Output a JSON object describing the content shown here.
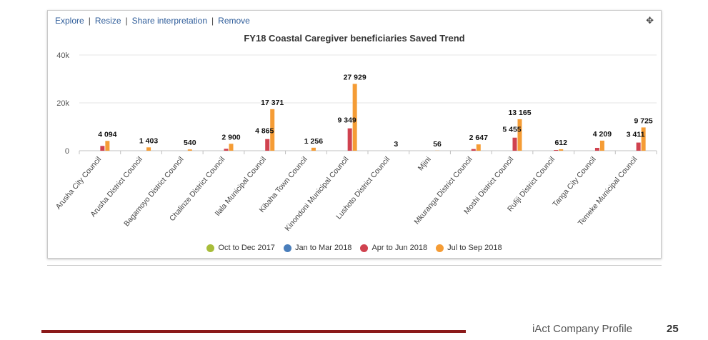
{
  "toolbar": {
    "links": [
      "Explore",
      "Resize",
      "Share interpretation",
      "Remove"
    ],
    "move_icon": "move-icon"
  },
  "footer": {
    "title": "iAct Company Profile",
    "page_number": "25",
    "accent_color": "#8b1a1a"
  },
  "chart_data": {
    "type": "bar",
    "title": "FY18 Coastal Caregiver beneficiaries Saved Trend",
    "xlabel": "",
    "ylabel": "",
    "ylim": [
      0,
      40000
    ],
    "y_ticks": [
      "0",
      "20k",
      "40k"
    ],
    "y_tick_values": [
      0,
      20000,
      40000
    ],
    "grid": true,
    "legend_position": "bottom",
    "categories": [
      "Arusha City Council",
      "Arusha District Council",
      "Bagamoyo District Council",
      "Chalinze District Council",
      "Ilala Municipal Council",
      "Kibaha Town Council",
      "Kinondoni Municipal Council",
      "Lushoto District Council",
      "Mjini",
      "Mkuranga District Council",
      "Moshi District Council",
      "Rufiji District Council",
      "Tanga City Council",
      "Temeke Municipal Council"
    ],
    "series": [
      {
        "name": "Oct to Dec 2017",
        "color": "#a8bd3a",
        "values": [
          0,
          0,
          0,
          0,
          0,
          0,
          0,
          0,
          0,
          0,
          0,
          0,
          0,
          0
        ]
      },
      {
        "name": "Jan to Mar 2018",
        "color": "#4a7ebb",
        "values": [
          0,
          0,
          0,
          0,
          0,
          0,
          0,
          0,
          0,
          0,
          0,
          0,
          0,
          0
        ]
      },
      {
        "name": "Apr to Jun 2018",
        "color": "#d0424f",
        "values": [
          2000,
          0,
          0,
          800,
          4865,
          0,
          9349,
          0,
          0,
          700,
          5455,
          300,
          1200,
          3411
        ]
      },
      {
        "name": "Jul to Sep 2018",
        "color": "#f59c35",
        "values": [
          4094,
          1403,
          540,
          2900,
          17371,
          1256,
          27929,
          3,
          56,
          2647,
          13165,
          612,
          4209,
          9725
        ]
      }
    ],
    "data_labels": [
      {
        "text": "4 094",
        "category": 0,
        "series": 3
      },
      {
        "text": "1 403",
        "category": 1,
        "series": 3
      },
      {
        "text": "540",
        "category": 2,
        "series": 3
      },
      {
        "text": "2 900",
        "category": 3,
        "series": 3
      },
      {
        "text": "17 371",
        "category": 4,
        "series": 3
      },
      {
        "text": "4 865",
        "category": 4,
        "series": 2
      },
      {
        "text": "1 256",
        "category": 5,
        "series": 3
      },
      {
        "text": "27 929",
        "category": 6,
        "series": 3
      },
      {
        "text": "9 349",
        "category": 6,
        "series": 2
      },
      {
        "text": "3",
        "category": 7,
        "series": 3
      },
      {
        "text": "56",
        "category": 8,
        "series": 3
      },
      {
        "text": "2 647",
        "category": 9,
        "series": 3
      },
      {
        "text": "13 165",
        "category": 10,
        "series": 3
      },
      {
        "text": "5 455",
        "category": 10,
        "series": 2
      },
      {
        "text": "612",
        "category": 11,
        "series": 3
      },
      {
        "text": "4 209",
        "category": 12,
        "series": 3
      },
      {
        "text": "9 725",
        "category": 13,
        "series": 3
      },
      {
        "text": "3 411",
        "category": 13,
        "series": 2
      }
    ]
  }
}
